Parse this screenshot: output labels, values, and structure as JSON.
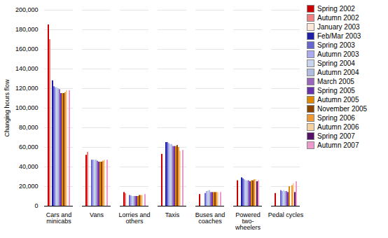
{
  "chart_data": {
    "type": "bar",
    "categories": [
      "Cars and\nminicabs",
      "Vans",
      "Lorries and\nothers",
      "Taxis",
      "Buses and\ncoaches",
      "Powered\ntwo-\nwheelers",
      "Pedal cycles"
    ],
    "series": [
      {
        "name": "Spring 2002",
        "color": "#cc0000",
        "values": [
          185000,
          52000,
          14000,
          53000,
          12000,
          26000,
          13000
        ]
      },
      {
        "name": "Autumn 2002",
        "color": "#f08080",
        "values": [
          170000,
          55000,
          13000,
          null,
          null,
          null,
          null
        ]
      },
      {
        "name": "January 2003",
        "color": "#fce8d8",
        "values": [
          null,
          null,
          null,
          null,
          null,
          null,
          null
        ]
      },
      {
        "name": "Feb/Mar 2003",
        "color": "#1f1fa8",
        "values": [
          128000,
          null,
          null,
          65000,
          null,
          29000,
          null
        ]
      },
      {
        "name": "Spring 2003",
        "color": "#6666cc",
        "values": [
          122000,
          47000,
          11000,
          65000,
          13000,
          28000,
          16000
        ]
      },
      {
        "name": "Autumn 2003",
        "color": "#aaaaee",
        "values": [
          121000,
          47000,
          10500,
          64000,
          15000,
          27000,
          15000
        ]
      },
      {
        "name": "Spring 2004",
        "color": "#c8d4ec",
        "values": [
          121000,
          47000,
          10000,
          63000,
          15500,
          26000,
          16000
        ]
      },
      {
        "name": "Autumn 2004",
        "color": "#b0bce0",
        "values": [
          120000,
          47000,
          10000,
          63000,
          16000,
          26000,
          15000
        ]
      },
      {
        "name": "March 2005",
        "color": "#9966bb",
        "values": [
          119000,
          46000,
          10000,
          61000,
          14000,
          26000,
          15000
        ]
      },
      {
        "name": "Spring 2005",
        "color": "#6633aa",
        "values": [
          115000,
          45000,
          10000,
          61000,
          14000,
          25000,
          14000
        ]
      },
      {
        "name": "Autumn 2005",
        "color": "#dd8800",
        "values": [
          115000,
          45000,
          10000,
          61000,
          14000,
          26000,
          20000
        ]
      },
      {
        "name": "November 2005",
        "color": "#884400",
        "values": [
          115000,
          45000,
          11000,
          62000,
          14000,
          26000,
          null
        ]
      },
      {
        "name": "Spring 2006",
        "color": "#ee9933",
        "values": [
          116000,
          46000,
          11000,
          60000,
          14000,
          27000,
          21000
        ]
      },
      {
        "name": "Autumn 2006",
        "color": "#f5d0a0",
        "values": [
          118000,
          47000,
          11000,
          56000,
          14000,
          27000,
          23000
        ]
      },
      {
        "name": "Spring 2007",
        "color": "#551166",
        "values": [
          null,
          null,
          null,
          null,
          null,
          25000,
          14000
        ]
      },
      {
        "name": "Autumn 2007",
        "color": "#ee99cc",
        "values": [
          118000,
          47000,
          12000,
          57000,
          14000,
          26000,
          25000
        ]
      }
    ],
    "ylabel": "Changing hours flow",
    "ylim": [
      0,
      200000
    ],
    "yticks": [
      0,
      {
        "value": 20000,
        "label": "20,000"
      },
      {
        "value": 40000,
        "label": "40,000"
      },
      {
        "value": 60000,
        "label": "60,000"
      },
      {
        "value": 80000,
        "label": "80,000"
      },
      {
        "value": 100000,
        "label": "100,000"
      },
      {
        "value": 120000,
        "label": "120,000"
      },
      {
        "value": 140000,
        "label": "140,000"
      },
      {
        "value": 160000,
        "label": "160,000"
      },
      {
        "value": 180000,
        "label": "180,000"
      },
      {
        "value": 200000,
        "label": "200,000"
      }
    ],
    "grid": true,
    "legend": "upper right"
  }
}
